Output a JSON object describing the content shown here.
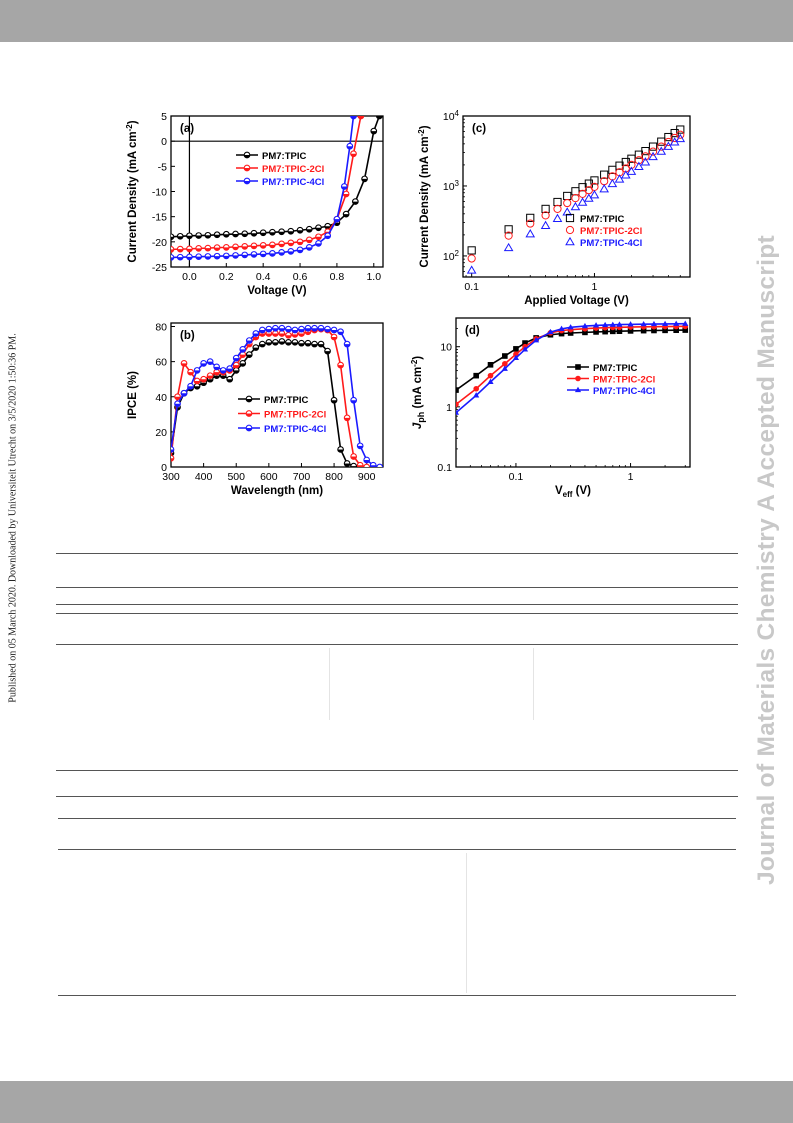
{
  "page": {
    "side_note": "Published on 05 March 2020. Downloaded by Universiteit Utrecht on 3/5/2020 1:50:36 PM.",
    "watermark": "Journal of Materials Chemistry A Accepted Manuscript",
    "colors": {
      "bars": "#a6a6a6",
      "watermark": "#c8c8c8",
      "black_series": "#000000",
      "red_series": "#ff1a1a",
      "blue_series": "#1a1aff"
    }
  },
  "chart_data": [
    {
      "panel": "(a)",
      "type": "line",
      "xlabel": "Voltage (V)",
      "ylabel": "Current Density (mA cm-2)",
      "xlim": [
        -0.1,
        1.05
      ],
      "ylim": [
        -25,
        5
      ],
      "xticks": [
        "0.0",
        "0.2",
        "0.4",
        "0.6",
        "0.8",
        "1.0"
      ],
      "xtick_values": [
        0,
        0.2,
        0.4,
        0.6,
        0.8,
        1.0
      ],
      "yticks": [
        "5",
        "0",
        "-5",
        "-10",
        "-15",
        "-20",
        "-25"
      ],
      "ytick_values": [
        5,
        0,
        -5,
        -10,
        -15,
        -20,
        -25
      ],
      "zero_lines": true,
      "legend": "center-left",
      "series": [
        {
          "name": "PM7:TPIC",
          "color": "#000000",
          "marker": "half-circle",
          "x": [
            -0.1,
            -0.05,
            0,
            0.05,
            0.1,
            0.15,
            0.2,
            0.25,
            0.3,
            0.35,
            0.4,
            0.45,
            0.5,
            0.55,
            0.6,
            0.65,
            0.7,
            0.75,
            0.8,
            0.85,
            0.9,
            0.95,
            1.0,
            1.03
          ],
          "y": [
            -19.0,
            -18.9,
            -18.8,
            -18.75,
            -18.7,
            -18.6,
            -18.5,
            -18.45,
            -18.4,
            -18.3,
            -18.2,
            -18.1,
            -18.0,
            -17.9,
            -17.7,
            -17.5,
            -17.2,
            -16.9,
            -16.2,
            -14.5,
            -12.0,
            -7.5,
            2.0,
            5
          ]
        },
        {
          "name": "PM7:TPIC-2Cl",
          "color": "#ff1a1a",
          "marker": "half-circle",
          "x": [
            -0.1,
            -0.05,
            0,
            0.05,
            0.1,
            0.15,
            0.2,
            0.25,
            0.3,
            0.35,
            0.4,
            0.45,
            0.5,
            0.55,
            0.6,
            0.65,
            0.7,
            0.75,
            0.8,
            0.85,
            0.89,
            0.93
          ],
          "y": [
            -21.5,
            -21.45,
            -21.4,
            -21.3,
            -21.25,
            -21.15,
            -21.1,
            -21.0,
            -20.9,
            -20.8,
            -20.7,
            -20.6,
            -20.4,
            -20.2,
            -20.0,
            -19.6,
            -19.0,
            -18.0,
            -15.5,
            -10.5,
            -2.5,
            5
          ]
        },
        {
          "name": "PM7:TPIC-4Cl",
          "color": "#1a1aff",
          "marker": "half-circle",
          "x": [
            -0.1,
            -0.05,
            0,
            0.05,
            0.1,
            0.15,
            0.2,
            0.25,
            0.3,
            0.35,
            0.4,
            0.45,
            0.5,
            0.55,
            0.6,
            0.65,
            0.7,
            0.75,
            0.8,
            0.84,
            0.87,
            0.89
          ],
          "y": [
            -23.1,
            -23.05,
            -23.0,
            -22.95,
            -22.9,
            -22.85,
            -22.8,
            -22.7,
            -22.6,
            -22.5,
            -22.4,
            -22.3,
            -22.1,
            -21.9,
            -21.6,
            -21.1,
            -20.3,
            -18.8,
            -15.5,
            -9.0,
            -1.0,
            5
          ]
        }
      ]
    },
    {
      "panel": "(b)",
      "type": "line",
      "xlabel": "Wavelength (nm)",
      "ylabel": "IPCE (%)",
      "xlim": [
        300,
        950
      ],
      "ylim": [
        0,
        82
      ],
      "xticks": [
        "300",
        "400",
        "500",
        "600",
        "700",
        "800",
        "900"
      ],
      "xtick_values": [
        300,
        400,
        500,
        600,
        700,
        800,
        900
      ],
      "yticks": [
        "0",
        "20",
        "40",
        "60",
        "80"
      ],
      "ytick_values": [
        0,
        20,
        40,
        60,
        80
      ],
      "legend": "center-right",
      "series": [
        {
          "name": "PM7:TPIC",
          "color": "#000000",
          "marker": "half-circle",
          "x": [
            300,
            320,
            340,
            360,
            380,
            400,
            420,
            440,
            460,
            480,
            500,
            520,
            540,
            560,
            580,
            600,
            620,
            640,
            660,
            680,
            700,
            720,
            740,
            760,
            780,
            800,
            820,
            840,
            860,
            880
          ],
          "y": [
            8,
            34,
            42,
            45,
            46,
            48,
            50,
            52,
            52,
            50,
            55,
            59,
            64,
            68,
            70,
            71,
            71,
            71.5,
            71,
            71,
            70.5,
            70.5,
            70,
            70,
            66,
            38,
            10,
            2,
            0.5,
            0
          ]
        },
        {
          "name": "PM7:TPIC-2Cl",
          "color": "#ff1a1a",
          "marker": "half-circle",
          "x": [
            300,
            320,
            340,
            360,
            380,
            400,
            420,
            440,
            460,
            480,
            500,
            520,
            540,
            560,
            580,
            600,
            620,
            640,
            660,
            680,
            700,
            720,
            740,
            760,
            780,
            800,
            820,
            840,
            860,
            880,
            900
          ],
          "y": [
            5,
            40,
            59,
            54,
            49,
            50,
            52,
            54,
            54,
            55,
            58,
            64,
            70,
            74,
            76,
            76,
            76,
            76,
            75,
            75.5,
            76,
            77,
            78,
            78.5,
            78,
            74,
            58,
            28,
            6,
            1,
            0
          ]
        },
        {
          "name": "PM7:TPIC-4Cl",
          "color": "#1a1aff",
          "marker": "half-circle",
          "x": [
            300,
            320,
            340,
            360,
            380,
            400,
            420,
            440,
            460,
            480,
            500,
            520,
            540,
            560,
            580,
            600,
            620,
            640,
            660,
            680,
            700,
            720,
            740,
            760,
            780,
            800,
            820,
            840,
            860,
            880,
            900,
            920,
            940
          ],
          "y": [
            10,
            36,
            42,
            46,
            55,
            59,
            60,
            57,
            55,
            56,
            62,
            67,
            72,
            76,
            78,
            78.5,
            79,
            79,
            78.5,
            78,
            78.5,
            79,
            79,
            79,
            78.5,
            78,
            77,
            70,
            38,
            12,
            4,
            1,
            0
          ]
        }
      ]
    },
    {
      "panel": "(c)",
      "type": "scatter",
      "xlabel": "Applied Voltage (V)",
      "ylabel": "Current Density (mA cm-2)",
      "xscale": "log",
      "yscale": "log",
      "xlim": [
        0.085,
        6
      ],
      "ylim": [
        50,
        10000
      ],
      "xticks": [
        "0.1",
        "1"
      ],
      "xtick_values": [
        0.1,
        1
      ],
      "yticks": [
        "10^2",
        "10^3",
        "10^4"
      ],
      "ytick_values": [
        100,
        1000,
        10000
      ],
      "legend": "center-right",
      "series": [
        {
          "name": "PM7:TPIC",
          "color": "#000000",
          "marker": "open-square",
          "x": [
            0.1,
            0.2,
            0.3,
            0.4,
            0.5,
            0.6,
            0.7,
            0.8,
            0.9,
            1.0,
            1.2,
            1.4,
            1.6,
            1.8,
            2.0,
            2.3,
            2.6,
            3.0,
            3.5,
            4.0,
            4.5,
            5.0
          ],
          "y": [
            120,
            240,
            350,
            470,
            590,
            720,
            840,
            960,
            1080,
            1200,
            1450,
            1700,
            1950,
            2200,
            2450,
            2800,
            3150,
            3650,
            4300,
            5000,
            5700,
            6400
          ]
        },
        {
          "name": "PM7:TPIC-2Cl",
          "color": "#ff1a1a",
          "marker": "open-circle",
          "x": [
            0.1,
            0.2,
            0.3,
            0.4,
            0.5,
            0.6,
            0.7,
            0.8,
            0.9,
            1.0,
            1.2,
            1.4,
            1.6,
            1.8,
            2.0,
            2.3,
            2.6,
            3.0,
            3.5,
            4.0,
            4.5,
            5.0
          ],
          "y": [
            92,
            195,
            290,
            380,
            470,
            570,
            670,
            770,
            870,
            970,
            1170,
            1370,
            1570,
            1780,
            2000,
            2330,
            2650,
            3100,
            3650,
            4250,
            4850,
            5400
          ]
        },
        {
          "name": "PM7:TPIC-4Cl",
          "color": "#1a1aff",
          "marker": "open-triangle",
          "x": [
            0.1,
            0.2,
            0.3,
            0.4,
            0.5,
            0.6,
            0.7,
            0.8,
            0.9,
            1.0,
            1.2,
            1.4,
            1.6,
            1.8,
            2.0,
            2.3,
            2.6,
            3.0,
            3.5,
            4.0,
            4.5,
            5.0
          ],
          "y": [
            62,
            130,
            205,
            270,
            340,
            420,
            500,
            580,
            660,
            740,
            900,
            1070,
            1240,
            1420,
            1600,
            1880,
            2180,
            2600,
            3100,
            3650,
            4200,
            4700
          ]
        }
      ]
    },
    {
      "panel": "(d)",
      "type": "line",
      "xlabel": "Veff (V)",
      "ylabel": "Jph (mA cm-2)",
      "xscale": "log",
      "yscale": "log",
      "xlim": [
        0.03,
        3.3
      ],
      "ylim": [
        0.1,
        30
      ],
      "xticks": [
        "0.1",
        "1"
      ],
      "xtick_values": [
        0.1,
        1
      ],
      "yticks": [
        "0.1",
        "1",
        "10"
      ],
      "ytick_values": [
        0.1,
        1,
        10
      ],
      "legend": "center-right",
      "series": [
        {
          "name": "PM7:TPIC",
          "color": "#000000",
          "marker": "filled-square",
          "x": [
            0.03,
            0.045,
            0.06,
            0.08,
            0.1,
            0.12,
            0.15,
            0.2,
            0.25,
            0.3,
            0.4,
            0.5,
            0.6,
            0.7,
            0.8,
            1.0,
            1.3,
            1.6,
            2.0,
            2.5,
            3.0
          ],
          "y": [
            1.9,
            3.3,
            5.0,
            7.0,
            9.2,
            11.5,
            14.0,
            15.8,
            16.5,
            16.9,
            17.3,
            17.6,
            17.8,
            18.0,
            18.1,
            18.3,
            18.5,
            18.6,
            18.7,
            18.8,
            18.9
          ]
        },
        {
          "name": "PM7:TPIC-2Cl",
          "color": "#ff1a1a",
          "marker": "filled-circle",
          "x": [
            0.03,
            0.045,
            0.06,
            0.08,
            0.1,
            0.12,
            0.15,
            0.2,
            0.25,
            0.3,
            0.4,
            0.5,
            0.6,
            0.7,
            0.8,
            1.0,
            1.3,
            1.6,
            2.0,
            2.5,
            3.0
          ],
          "y": [
            1.1,
            2.0,
            3.3,
            5.2,
            7.5,
            10.0,
            13.5,
            17.0,
            18.5,
            19.2,
            19.9,
            20.4,
            20.7,
            20.9,
            21.0,
            21.2,
            21.4,
            21.5,
            21.6,
            21.7,
            21.8
          ]
        },
        {
          "name": "PM7:TPIC-4Cl",
          "color": "#1a1aff",
          "marker": "filled-triangle",
          "x": [
            0.03,
            0.045,
            0.06,
            0.08,
            0.1,
            0.12,
            0.15,
            0.2,
            0.25,
            0.3,
            0.4,
            0.5,
            0.6,
            0.7,
            0.8,
            1.0,
            1.3,
            1.6,
            2.0,
            2.5,
            3.0
          ],
          "y": [
            0.8,
            1.55,
            2.6,
            4.3,
            6.5,
            9.0,
            12.8,
            17.5,
            19.8,
            21.0,
            22.0,
            22.6,
            22.9,
            23.1,
            23.3,
            23.5,
            23.7,
            23.8,
            23.9,
            24.0,
            24.1
          ]
        }
      ]
    }
  ]
}
